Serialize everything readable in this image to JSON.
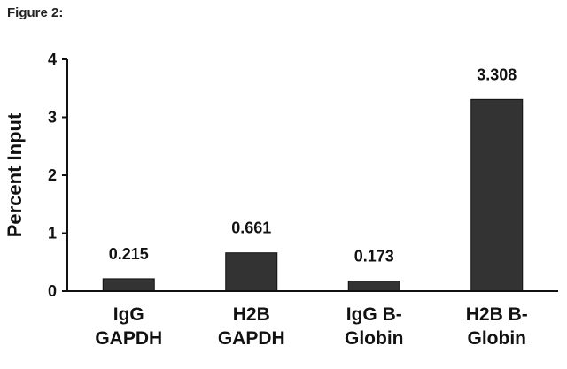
{
  "figure": {
    "label": "Figure 2:"
  },
  "chart_data": {
    "type": "bar",
    "categories": [
      [
        "IgG",
        "GAPDH"
      ],
      [
        "H2B",
        "GAPDH"
      ],
      [
        "IgG B-",
        "Globin"
      ],
      [
        "H2B B-",
        "Globin"
      ]
    ],
    "values": [
      0.215,
      0.661,
      0.173,
      3.308
    ],
    "data_labels": [
      "0.215",
      "0.661",
      "0.173",
      "3.308"
    ],
    "title": "",
    "xlabel": "",
    "ylabel": "Percent Input",
    "ylim": [
      0,
      4
    ],
    "yticks": [
      0,
      1,
      2,
      3,
      4
    ],
    "grid": false,
    "colors": {
      "bar": "#333333",
      "axis": "#111111"
    }
  }
}
